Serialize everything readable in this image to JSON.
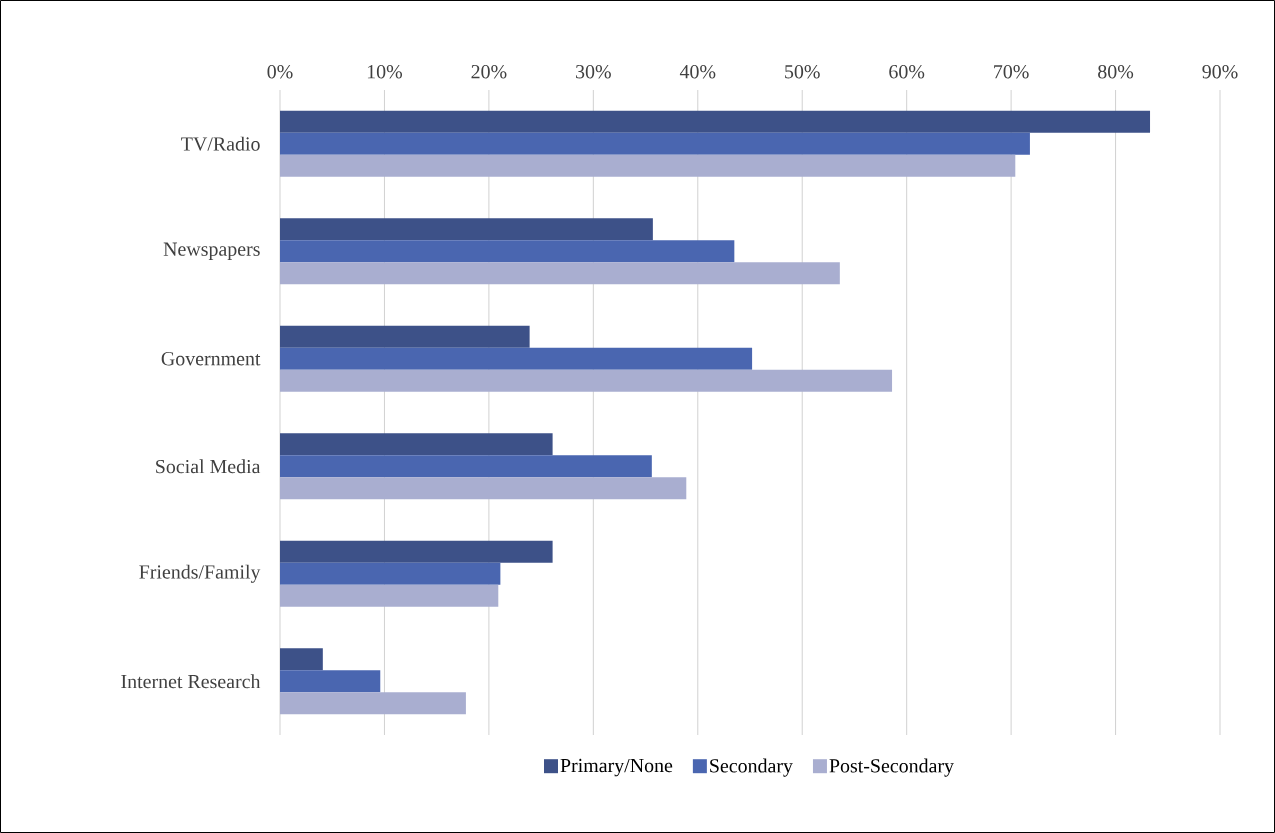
{
  "chart_data": {
    "type": "bar",
    "orientation": "horizontal",
    "categories": [
      "TV/Radio",
      "Newspapers",
      "Government",
      "Social Media",
      "Friends/Family",
      "Internet Research"
    ],
    "series": [
      {
        "name": "Primary/None",
        "color": "#3d5188",
        "values": [
          83.3,
          35.7,
          23.9,
          26.1,
          26.1,
          4.1
        ]
      },
      {
        "name": "Secondary",
        "color": "#4a66b0",
        "values": [
          71.8,
          43.5,
          45.2,
          35.6,
          21.1,
          9.6
        ]
      },
      {
        "name": "Post-Secondary",
        "color": "#a9aed0",
        "values": [
          70.4,
          53.6,
          58.6,
          38.9,
          20.9,
          17.8
        ]
      }
    ],
    "xlim": [
      0,
      90
    ],
    "xticks": [
      {
        "value": 0,
        "label": "0%"
      },
      {
        "value": 10,
        "label": "10%"
      },
      {
        "value": 20,
        "label": "20%"
      },
      {
        "value": 30,
        "label": "30%"
      },
      {
        "value": 40,
        "label": "40%"
      },
      {
        "value": 50,
        "label": "50%"
      },
      {
        "value": 60,
        "label": "60%"
      },
      {
        "value": 70,
        "label": "70%"
      },
      {
        "value": 80,
        "label": "80%"
      },
      {
        "value": 90,
        "label": "90%"
      }
    ],
    "grid": "x",
    "legend": "bottom"
  }
}
